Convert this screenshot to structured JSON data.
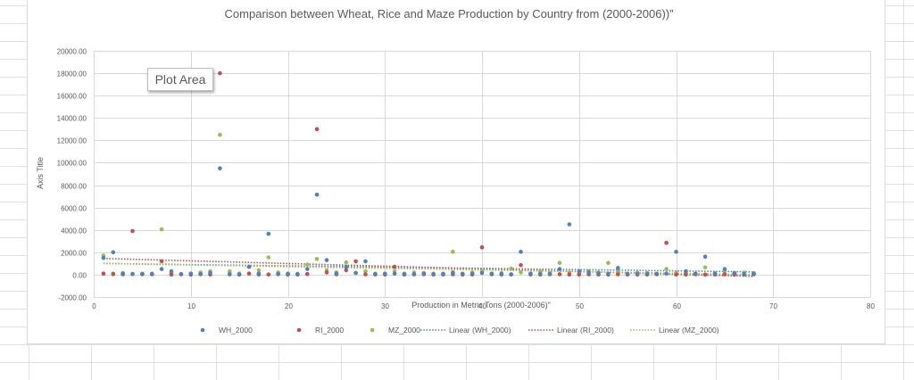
{
  "tooltip": "Plot Area",
  "colors": {
    "wheat": "#4e81bd",
    "rice": "#c0504d",
    "maize": "#9bbb59",
    "gridline": "#d9d9d9",
    "text": "#595959"
  },
  "chart_data": {
    "type": "scatter",
    "title": "Comparison between Wheat, Rice and Maze Production by Country from  (2000-2006))”",
    "xlabel": "Production in Metric Tons (2000-2006)\"",
    "ylabel": "Axis Title",
    "xlim": [
      0,
      80
    ],
    "ylim": [
      -2000,
      20000
    ],
    "xticks": [
      "0",
      "10",
      "20",
      "30",
      "40",
      "50",
      "60",
      "70",
      "80"
    ],
    "yticks": [
      "-2000.00",
      "0.00",
      "2000.00",
      "4000.00",
      "6000.00",
      "8000.00",
      "10000.00",
      "12000.00",
      "14000.00",
      "16000.00",
      "18000.00",
      "20000.00"
    ],
    "grid": true,
    "legend_position": "bottom",
    "legend": [
      "WH_2000",
      "RI_2000",
      "MZ_2000",
      "Linear (WH_2000)",
      "Linear (RI_2000)",
      "Linear (MZ_2000)"
    ],
    "series": [
      {
        "name": "WH_2000",
        "x": [
          1,
          2,
          3,
          4,
          5,
          6,
          7,
          8,
          9,
          10,
          11,
          12,
          13,
          14,
          15,
          16,
          17,
          18,
          19,
          20,
          21,
          22,
          23,
          24,
          25,
          26,
          27,
          28,
          29,
          30,
          31,
          32,
          33,
          34,
          35,
          36,
          37,
          38,
          39,
          40,
          41,
          42,
          43,
          44,
          45,
          46,
          47,
          48,
          49,
          50,
          51,
          52,
          53,
          54,
          55,
          56,
          57,
          58,
          59,
          60,
          61,
          62,
          63,
          64,
          65,
          66,
          67,
          68
        ],
        "y": [
          1500,
          2000,
          100,
          50,
          80,
          30,
          500,
          300,
          40,
          100,
          60,
          150,
          9500,
          50,
          20,
          700,
          100,
          3650,
          60,
          80,
          40,
          500,
          7150,
          1300,
          100,
          700,
          150,
          1200,
          60,
          90,
          100,
          50,
          30,
          100,
          40,
          70,
          200,
          60,
          80,
          150,
          90,
          60,
          30,
          2050,
          100,
          80,
          60,
          500,
          4500,
          300,
          200,
          120,
          90,
          600,
          60,
          80,
          70,
          60,
          100,
          2050,
          300,
          90,
          1600,
          100,
          500,
          150,
          60,
          80
        ]
      },
      {
        "name": "RI_2000",
        "x": [
          1,
          2,
          3,
          4,
          5,
          6,
          7,
          8,
          9,
          10,
          11,
          12,
          13,
          14,
          15,
          16,
          17,
          18,
          19,
          20,
          21,
          22,
          23,
          24,
          25,
          26,
          27,
          28,
          29,
          30,
          31,
          32,
          33,
          34,
          35,
          36,
          37,
          38,
          39,
          40,
          41,
          42,
          43,
          44,
          45,
          46,
          47,
          48,
          49,
          50,
          51,
          52,
          53,
          54,
          55,
          56,
          57,
          58,
          59,
          60,
          61,
          62,
          63,
          64,
          65,
          66,
          67,
          68
        ],
        "y": [
          100,
          50,
          30,
          3900,
          40,
          60,
          1200,
          20,
          30,
          10,
          40,
          20,
          18000,
          30,
          20,
          100,
          10,
          20,
          40,
          10,
          20,
          60,
          13000,
          200,
          30,
          400,
          1200,
          30,
          20,
          10,
          700,
          20,
          30,
          40,
          10,
          20,
          30,
          10,
          20,
          2450,
          30,
          20,
          10,
          850,
          20,
          10,
          30,
          40,
          20,
          10,
          30,
          20,
          10,
          30,
          20,
          10,
          20,
          30,
          2850,
          10,
          20,
          30,
          10,
          20,
          30,
          10,
          20,
          30
        ]
      },
      {
        "name": "MZ_2000",
        "x": [
          1,
          2,
          3,
          4,
          5,
          6,
          7,
          8,
          9,
          10,
          11,
          12,
          13,
          14,
          15,
          16,
          17,
          18,
          19,
          20,
          21,
          22,
          23,
          24,
          25,
          26,
          27,
          28,
          29,
          30,
          31,
          32,
          33,
          34,
          35,
          36,
          37,
          38,
          39,
          40,
          41,
          42,
          43,
          44,
          45,
          46,
          47,
          48,
          49,
          50,
          51,
          52,
          53,
          54,
          55,
          56,
          57,
          58,
          59,
          60,
          61,
          62,
          63,
          64,
          65,
          66,
          67,
          68
        ],
        "y": [
          1700,
          100,
          150,
          80,
          60,
          100,
          4050,
          150,
          60,
          80,
          200,
          300,
          12500,
          300,
          100,
          700,
          400,
          1550,
          200,
          100,
          80,
          900,
          1400,
          400,
          200,
          1100,
          150,
          300,
          100,
          80,
          300,
          100,
          200,
          150,
          100,
          80,
          2050,
          100,
          200,
          300,
          100,
          150,
          550,
          200,
          100,
          300,
          150,
          1050,
          200,
          100,
          300,
          200,
          1050,
          300,
          100,
          200,
          150,
          100,
          500,
          200,
          100,
          80,
          650,
          100,
          300,
          100,
          200,
          150
        ]
      }
    ],
    "trendlines": [
      {
        "name": "Linear (WH_2000)",
        "type": "linear",
        "from": [
          1,
          1000
        ],
        "to": [
          68,
          250
        ]
      },
      {
        "name": "Linear (RI_2000)",
        "type": "linear",
        "from": [
          1,
          1450
        ],
        "to": [
          68,
          -150
        ]
      },
      {
        "name": "Linear (MZ_2000)",
        "type": "linear",
        "from": [
          1,
          1000
        ],
        "to": [
          68,
          0
        ]
      }
    ]
  }
}
